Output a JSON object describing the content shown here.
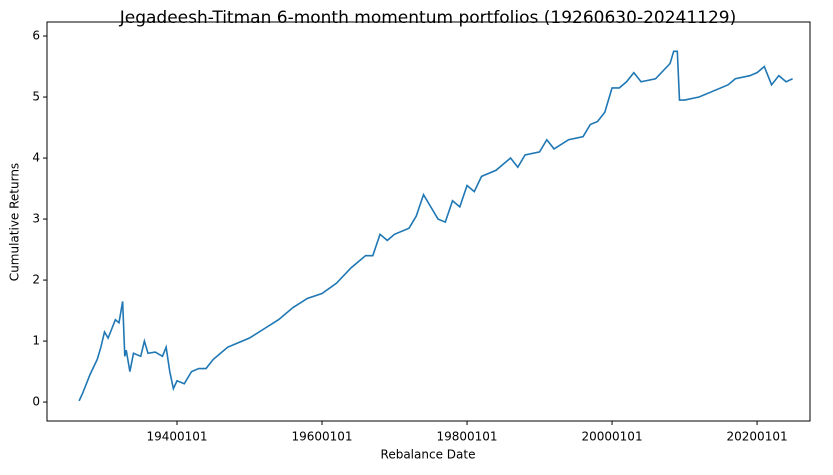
{
  "chart_data": {
    "type": "line",
    "title": "Jegadeesh-Titman 6-month momentum portfolios (19260630-20241129)",
    "x_label": "Rebalance Date",
    "y_label": "Cumulative Returns",
    "x": [
      1926.5,
      1927,
      1928,
      1929,
      1929.5,
      1930,
      1930.5,
      1931,
      1931.5,
      1932,
      1932.5,
      1932.8,
      1933,
      1933.5,
      1934,
      1935,
      1935.5,
      1936,
      1937,
      1938,
      1938.5,
      1939,
      1939.5,
      1940,
      1941,
      1942,
      1943,
      1944,
      1945,
      1946,
      1947,
      1948,
      1950,
      1952,
      1954,
      1956,
      1958,
      1960,
      1962,
      1964,
      1966,
      1967,
      1968,
      1969,
      1970,
      1972,
      1973,
      1974,
      1975,
      1976,
      1977,
      1978,
      1979,
      1980,
      1981,
      1982,
      1984,
      1986,
      1987,
      1988,
      1990,
      1991,
      1992,
      1994,
      1996,
      1997,
      1998,
      1999,
      2000,
      2001,
      2002,
      2003,
      2004,
      2006,
      2008,
      2008.5,
      2009,
      2009.3,
      2010,
      2012,
      2014,
      2016,
      2017,
      2019,
      2020,
      2021,
      2022,
      2023,
      2024,
      2024.9
    ],
    "series": [
      {
        "name": "Cumulative Returns",
        "color": "#1f77b4",
        "values": [
          0.02,
          0.15,
          0.45,
          0.7,
          0.9,
          1.15,
          1.05,
          1.2,
          1.35,
          1.3,
          1.65,
          0.75,
          0.85,
          0.5,
          0.8,
          0.75,
          1.0,
          0.8,
          0.82,
          0.75,
          0.9,
          0.5,
          0.22,
          0.35,
          0.3,
          0.5,
          0.55,
          0.55,
          0.7,
          0.8,
          0.9,
          0.95,
          1.05,
          1.2,
          1.35,
          1.55,
          1.7,
          1.78,
          1.95,
          2.2,
          2.4,
          2.4,
          2.75,
          2.65,
          2.75,
          2.85,
          3.05,
          3.4,
          3.2,
          3.0,
          2.95,
          3.3,
          3.2,
          3.55,
          3.45,
          3.7,
          3.8,
          4.0,
          3.85,
          4.05,
          4.1,
          4.3,
          4.15,
          4.3,
          4.35,
          4.55,
          4.6,
          4.75,
          5.15,
          5.15,
          5.25,
          5.4,
          5.25,
          5.3,
          5.55,
          5.75,
          5.75,
          4.95,
          4.95,
          5.0,
          5.1,
          5.2,
          5.3,
          5.35,
          5.4,
          5.5,
          5.2,
          5.35,
          5.25,
          5.3
        ]
      }
    ],
    "xlim": [
      1922.07,
      2027.3
    ],
    "xticks": [
      {
        "value": 1940,
        "label": "19400101"
      },
      {
        "value": 1960,
        "label": "19600101"
      },
      {
        "value": 1980,
        "label": "19800101"
      },
      {
        "value": 2000,
        "label": "20000101"
      },
      {
        "value": 2020,
        "label": "20200101"
      }
    ],
    "ylim": [
      -0.31,
      6.23
    ],
    "yticks": [
      0,
      1,
      2,
      3,
      4,
      5,
      6
    ]
  }
}
